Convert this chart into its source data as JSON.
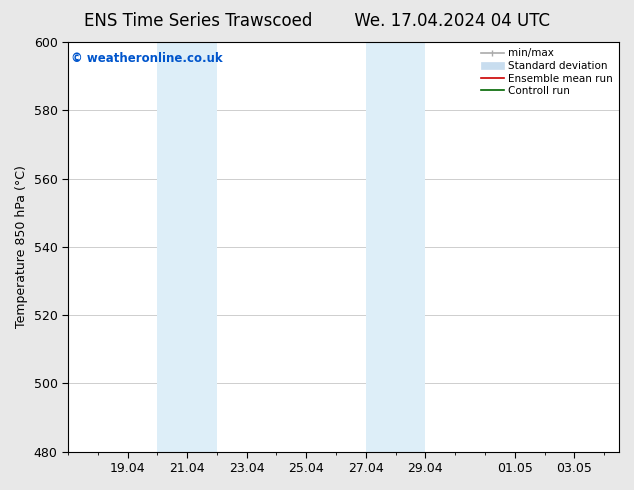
{
  "title_left": "ENS Time Series Trawscoed",
  "title_right": "We. 17.04.2024 04 UTC",
  "ylabel": "Temperature 850 hPa (°C)",
  "ylim": [
    480,
    600
  ],
  "yticks": [
    480,
    500,
    520,
    540,
    560,
    580,
    600
  ],
  "xlabel_ticks": [
    "19.04",
    "21.04",
    "23.04",
    "25.04",
    "27.04",
    "29.04",
    "01.05",
    "03.05"
  ],
  "tick_positions": [
    2,
    4,
    6,
    8,
    10,
    12,
    15,
    17
  ],
  "xmin": 0,
  "xmax": 18.5,
  "shaded_bands": [
    {
      "xmin": 3.0,
      "xmax": 5.0,
      "color": "#ddeef8"
    },
    {
      "xmin": 10.0,
      "xmax": 12.0,
      "color": "#ddeef8"
    }
  ],
  "watermark_text": "© weatheronline.co.uk",
  "watermark_color": "#0055cc",
  "background_color": "#e8e8e8",
  "plot_bg_color": "#ffffff",
  "legend_items": [
    {
      "label": "min/max",
      "color": "#aaaaaa",
      "lw": 1.2
    },
    {
      "label": "Standard deviation",
      "color": "#c8ddef",
      "lw": 8
    },
    {
      "label": "Ensemble mean run",
      "color": "#cc0000",
      "lw": 1.2
    },
    {
      "label": "Controll run",
      "color": "#006600",
      "lw": 1.2
    }
  ],
  "grid_color": "#bbbbbb",
  "title_fontsize": 12,
  "tick_label_fontsize": 9,
  "ylabel_fontsize": 9
}
